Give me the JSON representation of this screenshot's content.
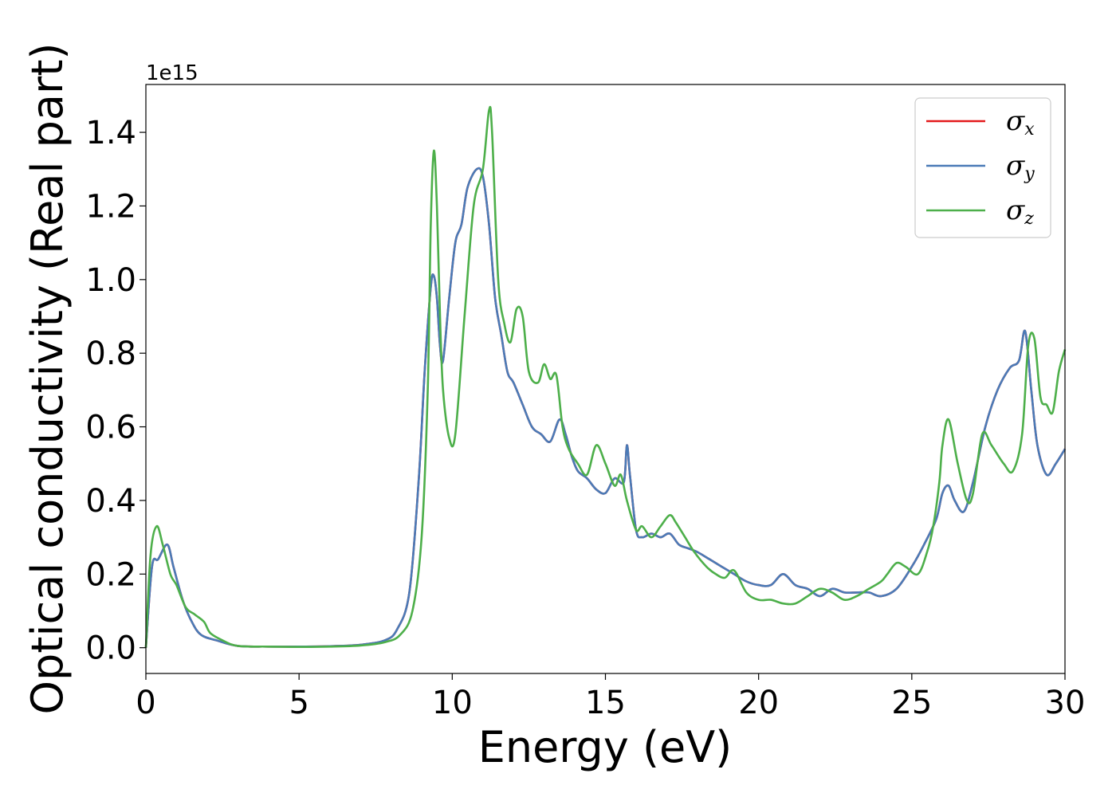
{
  "chart_data": {
    "type": "line",
    "xlabel": "Energy (eV)",
    "ylabel": "Optical conductivity (Real part)",
    "y_offset_label": "1e15",
    "xlim": [
      0,
      30
    ],
    "ylim": [
      -0.07,
      1.53
    ],
    "xticks": [
      0,
      5,
      10,
      15,
      20,
      25,
      30
    ],
    "xtick_labels": [
      "0",
      "5",
      "10",
      "15",
      "20",
      "25",
      "30"
    ],
    "yticks": [
      0.0,
      0.2,
      0.4,
      0.6,
      0.8,
      1.0,
      1.2,
      1.4
    ],
    "ytick_labels": [
      "0.0",
      "0.2",
      "0.4",
      "0.6",
      "0.8",
      "1.0",
      "1.2",
      "1.4"
    ],
    "grid": false,
    "legend_position": "top-right",
    "series": [
      {
        "name": "σx",
        "symbol": "σ",
        "subscript": "x",
        "color": "#e41a1c",
        "x": [
          0,
          0.2,
          0.4,
          0.7,
          0.9,
          1.2,
          1.5,
          1.8,
          2.3,
          3,
          4,
          5,
          6,
          7,
          7.8,
          8.2,
          8.6,
          8.9,
          9.1,
          9.3,
          9.4,
          9.5,
          9.6,
          9.7,
          9.9,
          10.1,
          10.3,
          10.5,
          10.8,
          11,
          11.2,
          11.4,
          11.6,
          11.8,
          12,
          12.3,
          12.6,
          12.9,
          13.2,
          13.5,
          13.7,
          13.9,
          14.1,
          14.4,
          14.7,
          15,
          15.3,
          15.6,
          15.7,
          15.8,
          16,
          16.2,
          16.5,
          16.8,
          17.1,
          17.4,
          17.7,
          18,
          18.4,
          18.8,
          19.2,
          19.6,
          20,
          20.4,
          20.8,
          21.2,
          21.6,
          22,
          22.4,
          22.8,
          23.2,
          23.6,
          24,
          24.5,
          25,
          25.4,
          25.8,
          26,
          26.2,
          26.4,
          26.7,
          27,
          27.4,
          27.8,
          28.2,
          28.5,
          28.7,
          28.9,
          29.1,
          29.4,
          29.7,
          30
        ],
        "y": [
          0,
          0.22,
          0.24,
          0.28,
          0.22,
          0.13,
          0.07,
          0.035,
          0.02,
          0.005,
          0.003,
          0.003,
          0.004,
          0.008,
          0.02,
          0.05,
          0.15,
          0.45,
          0.75,
          0.98,
          1.01,
          0.95,
          0.82,
          0.78,
          0.95,
          1.1,
          1.15,
          1.25,
          1.3,
          1.28,
          1.15,
          0.95,
          0.85,
          0.75,
          0.72,
          0.66,
          0.6,
          0.58,
          0.56,
          0.62,
          0.58,
          0.52,
          0.48,
          0.46,
          0.43,
          0.42,
          0.46,
          0.45,
          0.55,
          0.47,
          0.32,
          0.3,
          0.31,
          0.3,
          0.31,
          0.28,
          0.27,
          0.26,
          0.24,
          0.22,
          0.2,
          0.18,
          0.17,
          0.17,
          0.2,
          0.17,
          0.16,
          0.14,
          0.16,
          0.15,
          0.15,
          0.15,
          0.14,
          0.16,
          0.22,
          0.28,
          0.35,
          0.42,
          0.44,
          0.4,
          0.37,
          0.45,
          0.6,
          0.7,
          0.76,
          0.78,
          0.86,
          0.7,
          0.55,
          0.47,
          0.5,
          0.54
        ]
      },
      {
        "name": "σy",
        "symbol": "σ",
        "subscript": "y",
        "color": "#4a7bb7",
        "x": [
          0,
          0.2,
          0.4,
          0.7,
          0.9,
          1.2,
          1.5,
          1.8,
          2.3,
          3,
          4,
          5,
          6,
          7,
          7.8,
          8.2,
          8.6,
          8.9,
          9.1,
          9.3,
          9.4,
          9.5,
          9.6,
          9.7,
          9.9,
          10.1,
          10.3,
          10.5,
          10.8,
          11,
          11.2,
          11.4,
          11.6,
          11.8,
          12,
          12.3,
          12.6,
          12.9,
          13.2,
          13.5,
          13.7,
          13.9,
          14.1,
          14.4,
          14.7,
          15,
          15.3,
          15.6,
          15.7,
          15.8,
          16,
          16.2,
          16.5,
          16.8,
          17.1,
          17.4,
          17.7,
          18,
          18.4,
          18.8,
          19.2,
          19.6,
          20,
          20.4,
          20.8,
          21.2,
          21.6,
          22,
          22.4,
          22.8,
          23.2,
          23.6,
          24,
          24.5,
          25,
          25.4,
          25.8,
          26,
          26.2,
          26.4,
          26.7,
          27,
          27.4,
          27.8,
          28.2,
          28.5,
          28.7,
          28.9,
          29.1,
          29.4,
          29.7,
          30
        ],
        "y": [
          0,
          0.22,
          0.24,
          0.28,
          0.22,
          0.13,
          0.07,
          0.035,
          0.02,
          0.005,
          0.003,
          0.003,
          0.004,
          0.008,
          0.02,
          0.05,
          0.15,
          0.45,
          0.75,
          0.98,
          1.01,
          0.95,
          0.82,
          0.78,
          0.95,
          1.1,
          1.15,
          1.25,
          1.3,
          1.28,
          1.15,
          0.95,
          0.85,
          0.75,
          0.72,
          0.66,
          0.6,
          0.58,
          0.56,
          0.62,
          0.58,
          0.52,
          0.48,
          0.46,
          0.43,
          0.42,
          0.46,
          0.45,
          0.55,
          0.47,
          0.32,
          0.3,
          0.31,
          0.3,
          0.31,
          0.28,
          0.27,
          0.26,
          0.24,
          0.22,
          0.2,
          0.18,
          0.17,
          0.17,
          0.2,
          0.17,
          0.16,
          0.14,
          0.16,
          0.15,
          0.15,
          0.15,
          0.14,
          0.16,
          0.22,
          0.28,
          0.35,
          0.42,
          0.44,
          0.4,
          0.37,
          0.45,
          0.6,
          0.7,
          0.76,
          0.78,
          0.86,
          0.7,
          0.55,
          0.47,
          0.5,
          0.54
        ]
      },
      {
        "name": "σz",
        "symbol": "σ",
        "subscript": "z",
        "color": "#4daf4a",
        "x": [
          0,
          0.15,
          0.35,
          0.55,
          0.8,
          1.0,
          1.3,
          1.6,
          1.9,
          2.1,
          2.5,
          3,
          4,
          5,
          6,
          7,
          7.8,
          8.3,
          8.7,
          9.0,
          9.2,
          9.3,
          9.4,
          9.5,
          9.6,
          9.7,
          9.9,
          10.1,
          10.4,
          10.7,
          11.0,
          11.2,
          11.3,
          11.5,
          11.7,
          11.9,
          12.1,
          12.3,
          12.5,
          12.8,
          13.0,
          13.2,
          13.4,
          13.6,
          13.8,
          14.1,
          14.4,
          14.7,
          15.0,
          15.3,
          15.5,
          15.7,
          16.0,
          16.2,
          16.5,
          16.8,
          17.1,
          17.3,
          17.6,
          17.9,
          18.3,
          18.6,
          18.9,
          19.2,
          19.6,
          20.0,
          20.4,
          20.8,
          21.2,
          21.6,
          22.0,
          22.4,
          22.8,
          23.2,
          23.6,
          24.0,
          24.2,
          24.5,
          24.8,
          25.2,
          25.5,
          25.7,
          25.9,
          26.0,
          26.2,
          26.5,
          26.8,
          27.0,
          27.3,
          27.6,
          28.0,
          28.3,
          28.6,
          28.8,
          29.0,
          29.2,
          29.4,
          29.6,
          29.8,
          30
        ],
        "y": [
          0,
          0.25,
          0.33,
          0.28,
          0.2,
          0.17,
          0.11,
          0.09,
          0.07,
          0.04,
          0.02,
          0.005,
          0.003,
          0.002,
          0.003,
          0.006,
          0.015,
          0.035,
          0.1,
          0.3,
          0.7,
          1.15,
          1.35,
          1.2,
          0.9,
          0.7,
          0.57,
          0.58,
          0.9,
          1.2,
          1.3,
          1.46,
          1.4,
          1.0,
          0.88,
          0.83,
          0.92,
          0.9,
          0.75,
          0.72,
          0.77,
          0.73,
          0.74,
          0.6,
          0.54,
          0.5,
          0.47,
          0.55,
          0.5,
          0.44,
          0.47,
          0.4,
          0.32,
          0.33,
          0.3,
          0.33,
          0.36,
          0.34,
          0.3,
          0.26,
          0.22,
          0.2,
          0.19,
          0.21,
          0.15,
          0.13,
          0.13,
          0.12,
          0.12,
          0.14,
          0.16,
          0.15,
          0.13,
          0.14,
          0.16,
          0.18,
          0.2,
          0.23,
          0.22,
          0.2,
          0.26,
          0.33,
          0.45,
          0.55,
          0.62,
          0.5,
          0.4,
          0.42,
          0.58,
          0.55,
          0.5,
          0.48,
          0.58,
          0.82,
          0.84,
          0.68,
          0.66,
          0.64,
          0.75,
          0.81
        ]
      }
    ]
  }
}
